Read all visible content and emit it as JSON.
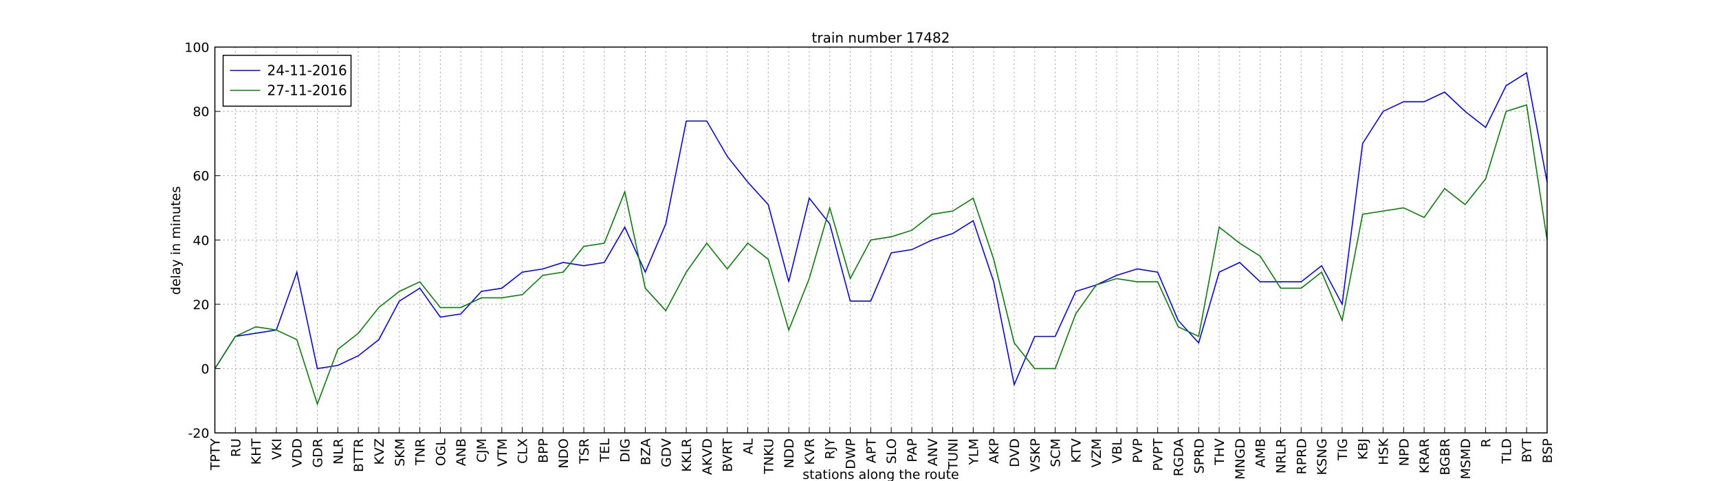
{
  "chart_data": {
    "type": "line",
    "title": "train number 17482",
    "x_label": "stations along the route",
    "y_label": "delay in minutes",
    "categories": [
      "TPTY",
      "RU",
      "KHT",
      "VKI",
      "VDD",
      "GDR",
      "NLR",
      "BTTR",
      "KVZ",
      "SKM",
      "TNR",
      "OGL",
      "ANB",
      "CJM",
      "VTM",
      "CLX",
      "BPP",
      "NDO",
      "TSR",
      "TEL",
      "DIG",
      "BZA",
      "GDV",
      "KKLR",
      "AKVD",
      "BVRT",
      "AL",
      "TNKU",
      "NDD",
      "KVR",
      "RJY",
      "DWP",
      "APT",
      "SLO",
      "PAP",
      "ANV",
      "TUNI",
      "YLM",
      "AKP",
      "DVD",
      "VSKP",
      "SCM",
      "KTV",
      "VZM",
      "VBL",
      "PVP",
      "PVPT",
      "RGDA",
      "SPRD",
      "THV",
      "MNGD",
      "AMB",
      "NRLR",
      "RPRD",
      "KSNG",
      "TIG",
      "KBJ",
      "HSK",
      "NPD",
      "KRAR",
      "BGBR",
      "MSMD",
      "R",
      "TLD",
      "BYT",
      "BSP"
    ],
    "series": [
      {
        "name": "24-11-2016",
        "color": "#0000ff",
        "values": [
          0,
          10,
          11,
          12,
          30,
          0,
          1,
          4,
          9,
          21,
          25,
          16,
          17,
          24,
          25,
          30,
          31,
          33,
          32,
          33,
          44,
          30,
          45,
          77,
          77,
          66,
          58,
          51,
          27,
          53,
          45,
          21,
          21,
          36,
          37,
          40,
          42,
          46,
          27,
          -5,
          10,
          10,
          24,
          26,
          29,
          31,
          30,
          15,
          8,
          30,
          33,
          27,
          27,
          27,
          32,
          20,
          70,
          80,
          83,
          83,
          86,
          80,
          75,
          88,
          92,
          58
        ]
      },
      {
        "name": "27-11-2016",
        "color": "#008000",
        "values": [
          0,
          10,
          13,
          12,
          9,
          -11,
          6,
          11,
          19,
          24,
          27,
          19,
          19,
          22,
          22,
          23,
          29,
          30,
          38,
          39,
          55,
          25,
          18,
          30,
          39,
          31,
          39,
          34,
          12,
          28,
          50,
          28,
          40,
          41,
          43,
          48,
          49,
          53,
          34,
          8,
          0,
          0,
          17,
          26,
          28,
          27,
          27,
          13,
          10,
          44,
          39,
          35,
          25,
          25,
          30,
          15,
          48,
          49,
          50,
          47,
          56,
          51,
          59,
          80,
          82,
          40
        ]
      }
    ],
    "ylim": [
      -20,
      100
    ],
    "yticks": [
      -20,
      0,
      20,
      40,
      60,
      80,
      100
    ],
    "grid": true,
    "legend": "upper left"
  }
}
